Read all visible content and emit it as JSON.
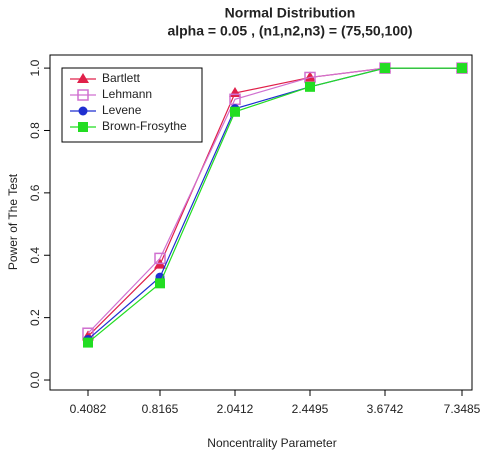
{
  "chart_data": {
    "type": "line",
    "title": "Normal Distribution",
    "subtitle": "alpha = 0.05 , (n1,n2,n3) = (75,50,100)",
    "x_label": "Noncentrality Parameter",
    "y_label": "Power of The Test",
    "categories": [
      "0.4082",
      "0.8165",
      "2.0412",
      "2.4495",
      "3.6742",
      "7.3485"
    ],
    "ylim": [
      -0.032,
      1.042
    ],
    "yticks": [
      {
        "value": 0,
        "label": "0.0"
      },
      0.2,
      0.4,
      0.6,
      0.8,
      {
        "value": 1,
        "label": "1.0"
      }
    ],
    "legend": "top-left",
    "series": [
      {
        "name": "Bartlett",
        "color": "#e0204a",
        "marker": "triangle",
        "values": [
          0.14,
          0.37,
          0.92,
          0.97,
          1.0,
          1.0
        ]
      },
      {
        "name": "Lehmann",
        "color": "#d070d0",
        "marker": "open-square",
        "values": [
          0.15,
          0.39,
          0.9,
          0.97,
          1.0,
          1.0
        ]
      },
      {
        "name": "Levene",
        "color": "#1f2fd0",
        "marker": "circle",
        "values": [
          0.13,
          0.33,
          0.87,
          0.94,
          1.0,
          1.0
        ]
      },
      {
        "name": "Brown-Frosythe",
        "color": "#22dd22",
        "marker": "square",
        "values": [
          0.12,
          0.31,
          0.86,
          0.94,
          1.0,
          1.0
        ]
      }
    ]
  }
}
